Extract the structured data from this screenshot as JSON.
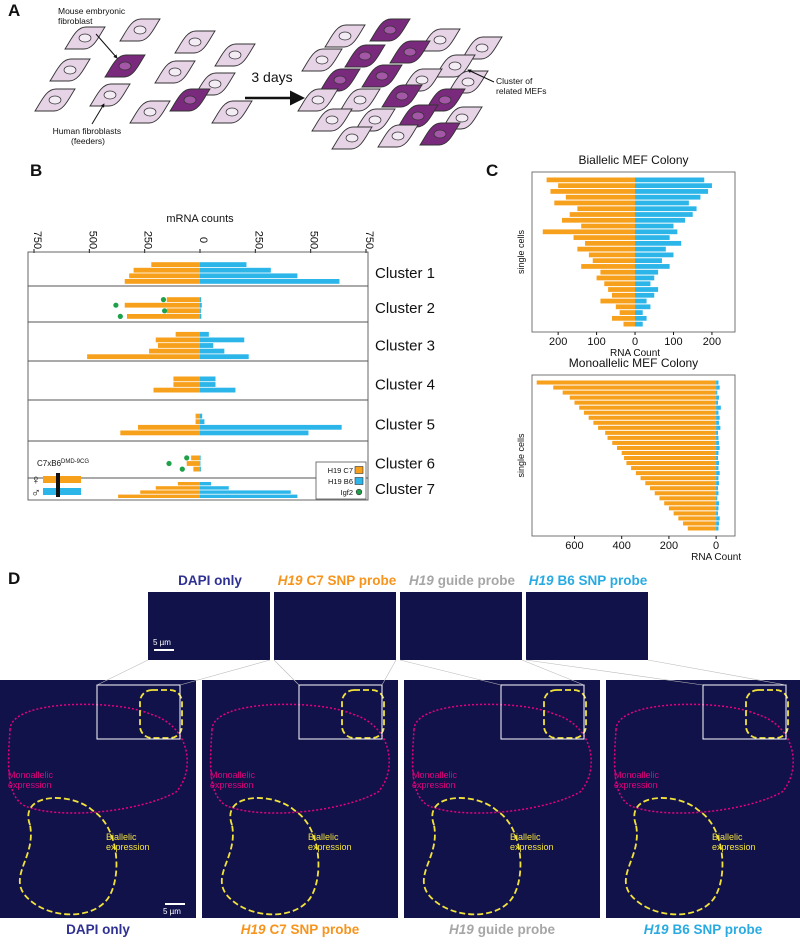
{
  "panel_labels": [
    "A",
    "B",
    "C",
    "D"
  ],
  "panel_a": {
    "mef_label": "Mouse embryonic fibroblast",
    "feeder_label": "Human fibroblasts (feeders)",
    "time_label": "3 days",
    "cluster_label": "Cluster of related MEFs"
  },
  "chart_data": [
    {
      "type": "butterfly-bar",
      "x_label": "mRNA counts",
      "xlim": [
        -750,
        750
      ],
      "xticks": [
        {
          "value": -750,
          "label": "750"
        },
        {
          "value": -500,
          "label": "500"
        },
        {
          "value": -250,
          "label": "250"
        },
        0,
        250,
        500,
        750
      ],
      "series": [
        {
          "name": "H19 C7",
          "color": "#f7a01c"
        },
        {
          "name": "H19 B6",
          "color": "#2cb5e8"
        },
        {
          "name": "Igf2",
          "color": "#1fa14a"
        }
      ],
      "clusters": [
        {
          "name": "Cluster 1",
          "values": [
            [
              -220,
              -300,
              -320,
              -340
            ],
            [
              210,
              320,
              440,
              630
            ]
          ]
        },
        {
          "name": "Cluster 2",
          "values": [
            [
              -150,
              -340,
              -150,
              -330
            ],
            [
              5,
              8,
              4,
              6
            ],
            [
              -165,
              -380,
              -160,
              -360
            ]
          ]
        },
        {
          "name": "Cluster 3",
          "values": [
            [
              -110,
              -200,
              -190,
              -230,
              -510
            ],
            [
              40,
              200,
              60,
              110,
              220
            ]
          ]
        },
        {
          "name": "Cluster 4",
          "values": [
            [
              -120,
              -120,
              -210
            ],
            [
              70,
              70,
              160
            ]
          ]
        },
        {
          "name": "Cluster 5",
          "values": [
            [
              -20,
              -20,
              -280,
              -360
            ],
            [
              10,
              20,
              640,
              490
            ]
          ]
        },
        {
          "name": "Cluster 6",
          "values": [
            [
              -40,
              -60,
              -30
            ],
            [
              3,
              2,
              4
            ],
            [
              -60,
              -140,
              -80
            ]
          ]
        },
        {
          "name": "Cluster 7",
          "values": [
            [
              -100,
              -200,
              -270,
              -370
            ],
            [
              50,
              130,
              410,
              440
            ]
          ]
        }
      ],
      "genotype": {
        "cross": "C7xB6",
        "allele": "DMD-9CG",
        "female": "♀",
        "male": "♂"
      }
    },
    {
      "type": "butterfly-bar",
      "title": "Biallelic MEF Colony",
      "x_label": "RNA Count",
      "y_label": "single cells",
      "xlim": [
        -268,
        260
      ],
      "xticks": [
        {
          "value": -200,
          "label": "200"
        },
        {
          "value": -100,
          "label": "100"
        },
        0,
        100,
        200
      ],
      "series": [
        {
          "color": "#f7a01c",
          "values": [
            -230,
            -200,
            -220,
            -180,
            -210,
            -150,
            -170,
            -190,
            -140,
            -240,
            -160,
            -130,
            -150,
            -120,
            -110,
            -140,
            -90,
            -100,
            -80,
            -70,
            -60,
            -90,
            -50,
            -40,
            -60,
            -30
          ]
        },
        {
          "color": "#2cb5e8",
          "values": [
            180,
            200,
            190,
            170,
            140,
            160,
            150,
            130,
            100,
            110,
            90,
            120,
            80,
            100,
            70,
            90,
            60,
            50,
            40,
            60,
            50,
            30,
            40,
            20,
            30,
            20
          ]
        }
      ]
    },
    {
      "type": "butterfly-bar",
      "title": "Monoallelic MEF Colony",
      "x_label": "RNA Count",
      "y_label": "single cells",
      "xlim": [
        -780,
        80
      ],
      "xticks": [
        {
          "value": -600,
          "label": "600"
        },
        {
          "value": -400,
          "label": "400"
        },
        {
          "value": -200,
          "label": "200"
        },
        0
      ],
      "series": [
        {
          "color": "#f7a01c",
          "values": [
            -760,
            -690,
            -650,
            -620,
            -600,
            -580,
            -560,
            -540,
            -520,
            -500,
            -470,
            -460,
            -440,
            -420,
            -400,
            -390,
            -380,
            -360,
            -340,
            -320,
            -300,
            -280,
            -260,
            -240,
            -220,
            -200,
            -180,
            -160,
            -140,
            -120
          ]
        },
        {
          "color": "#2cb5e8",
          "values": [
            10,
            15,
            5,
            12,
            8,
            20,
            10,
            15,
            12,
            18,
            8,
            10,
            12,
            15,
            10,
            8,
            12,
            10,
            15,
            10,
            12,
            8,
            10,
            5,
            12,
            10,
            8,
            15,
            12,
            10
          ]
        }
      ]
    }
  ],
  "panel_d": {
    "channels": [
      {
        "probe": "DAPI only",
        "color": "#2e3192"
      },
      {
        "gene": "H19",
        "probe": "C7 SNP probe",
        "color": "#f7941d"
      },
      {
        "gene": "H19",
        "probe": "guide probe",
        "color": "#a6a6a6"
      },
      {
        "gene": "H19",
        "probe": "B6 SNP probe",
        "color": "#29abe2"
      }
    ],
    "scale_bar": "5 µm",
    "regions": {
      "monoallelic": {
        "text": "Monoallelic expression",
        "color": "#e6007e"
      },
      "biallelic": {
        "text": "Biallelic expression",
        "color": "#f2e33a"
      }
    }
  }
}
